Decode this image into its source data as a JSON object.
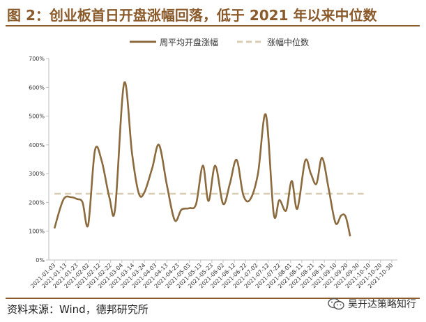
{
  "figure_title": "图 2：创业板首日开盘涨幅回落，低于 2021 年以来中位数",
  "source": "资料来源：Wind，德邦研究所",
  "watermark": "吴开达策略知行",
  "colors": {
    "line": "#8b6a3e",
    "median": "#d8ccb2",
    "title": "#8a5a2b",
    "axis": "#bfbfbf"
  },
  "chart_data": {
    "type": "line",
    "title": "",
    "xlabel": "",
    "ylabel": "",
    "ylim": [
      0,
      700
    ],
    "yticks": [
      "0%",
      "100%",
      "200%",
      "300%",
      "400%",
      "500%",
      "600%",
      "700%"
    ],
    "legend_position": "top-center",
    "grid": false,
    "categories": [
      "2021-01-03",
      "2021-01-13",
      "2021-01-23",
      "2021-02-02",
      "2021-02-12",
      "2021-02-22",
      "2021-03-04",
      "2021-03-14",
      "2021-03-24",
      "2021-04-03",
      "2021-04-13",
      "2021-04-23",
      "2021-05-03",
      "2021-05-13",
      "2021-05-23",
      "2021-06-02",
      "2021-06-12",
      "2021-06-22",
      "2021-07-02",
      "2021-07-12",
      "2021-07-22",
      "2021-08-01",
      "2021-08-11",
      "2021-08-21",
      "2021-08-31",
      "2021-09-10",
      "2021-09-20",
      "2021-09-30",
      "2021-10-10",
      "2021-10-20",
      "2021-10-30"
    ],
    "series": [
      {
        "name": "周平均开盘涨幅",
        "style": "solid",
        "points": [
          [
            0,
            110
          ],
          [
            0.8,
            210
          ],
          [
            1.5,
            218
          ],
          [
            2.0,
            212
          ],
          [
            2.5,
            200
          ],
          [
            3.0,
            122
          ],
          [
            3.6,
            380
          ],
          [
            4.2,
            345
          ],
          [
            4.9,
            215
          ],
          [
            5.4,
            180
          ],
          [
            6.2,
            615
          ],
          [
            6.9,
            370
          ],
          [
            7.5,
            232
          ],
          [
            8.0,
            235
          ],
          [
            8.7,
            320
          ],
          [
            9.3,
            400
          ],
          [
            10.0,
            260
          ],
          [
            10.7,
            138
          ],
          [
            11.3,
            175
          ],
          [
            12.0,
            180
          ],
          [
            12.6,
            195
          ],
          [
            13.2,
            328
          ],
          [
            13.7,
            205
          ],
          [
            14.3,
            328
          ],
          [
            15.0,
            195
          ],
          [
            15.6,
            265
          ],
          [
            16.2,
            348
          ],
          [
            16.8,
            225
          ],
          [
            17.4,
            210
          ],
          [
            18.1,
            300
          ],
          [
            18.8,
            505
          ],
          [
            19.5,
            160
          ],
          [
            20.0,
            208
          ],
          [
            20.6,
            172
          ],
          [
            21.1,
            275
          ],
          [
            21.6,
            178
          ],
          [
            22.3,
            345
          ],
          [
            22.8,
            300
          ],
          [
            23.3,
            265
          ],
          [
            23.8,
            355
          ],
          [
            24.4,
            245
          ],
          [
            25.0,
            128
          ],
          [
            25.5,
            155
          ],
          [
            25.9,
            150
          ],
          [
            26.3,
            82
          ]
        ]
      },
      {
        "name": "涨幅中位数",
        "style": "dashed",
        "value": 230,
        "x_range": [
          0,
          27.5
        ]
      }
    ]
  }
}
